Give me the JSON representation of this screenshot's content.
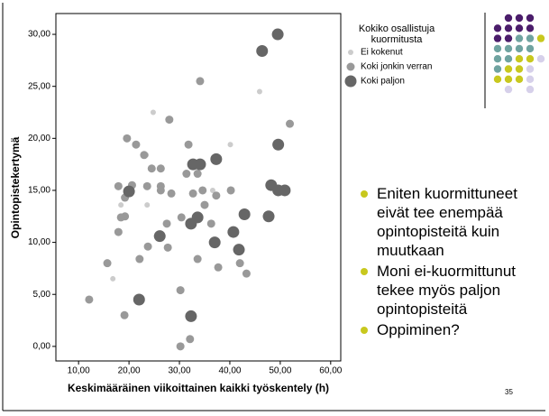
{
  "chart_data": {
    "type": "scatter",
    "x_label": "Keskimääräinen viikoittainen kaikki työskentely (h)",
    "y_label": "Opintopistekertymä",
    "legend_title": "Kokiko osallistuja kuormitusta",
    "xlim": [
      5.5,
      62
    ],
    "ylim": [
      -1.4,
      32
    ],
    "xticks": [
      {
        "value": 10,
        "label": "10,00"
      },
      {
        "value": 20,
        "label": "20,00"
      },
      {
        "value": 30,
        "label": "30,00"
      },
      {
        "value": 40,
        "label": "40,00"
      },
      {
        "value": 50,
        "label": "50,00"
      },
      {
        "value": 60,
        "label": "60,00"
      }
    ],
    "yticks": [
      {
        "value": 0,
        "label": "0,00"
      },
      {
        "value": 5,
        "label": "5,00"
      },
      {
        "value": 10,
        "label": "10,00"
      },
      {
        "value": 15,
        "label": "15,00"
      },
      {
        "value": 20,
        "label": "20,00"
      },
      {
        "value": 25,
        "label": "25,00"
      },
      {
        "value": 30,
        "label": "30,00"
      }
    ],
    "series": [
      {
        "name": "Ei kokenut",
        "color": "#cccccc",
        "x": [
          24.8,
          45.9,
          23.4,
          40.1,
          18.4,
          23.6,
          36.6,
          16.8
        ],
        "values": [
          22.5,
          24.5,
          18.4,
          19.4,
          13.6,
          13.6,
          15.0,
          6.5
        ]
      },
      {
        "name": "Koki jonkin verran",
        "color": "#999999",
        "x": [
          34.1,
          28.0,
          19.6,
          21.4,
          51.9,
          23.0,
          31.8,
          17.9,
          20.6,
          19.2,
          24.5,
          26.3,
          23.6,
          26.3,
          26.3,
          31.4,
          33.6,
          28.4,
          40.2,
          37.3,
          34.6,
          32.7,
          19.2,
          17.9,
          18.4,
          30.4,
          27.5,
          35.0,
          36.3,
          23.75,
          27.7,
          37.7,
          42.0,
          43.3,
          33.6,
          22.1,
          15.7,
          12.1,
          19.1,
          30.2,
          32.1,
          30.2
        ],
        "values": [
          25.5,
          21.8,
          20.0,
          19.4,
          21.4,
          18.4,
          19.4,
          15.4,
          15.5,
          14.3,
          17.1,
          17.1,
          15.4,
          15.4,
          15.0,
          16.6,
          16.6,
          14.7,
          15.0,
          14.5,
          15.0,
          14.7,
          12.5,
          11.0,
          12.4,
          12.4,
          11.8,
          13.6,
          11.8,
          9.6,
          9.5,
          7.6,
          8.0,
          7.0,
          8.4,
          8.4,
          8.0,
          4.5,
          3.0,
          5.4,
          0.7,
          0.0
        ]
      },
      {
        "name": "Koki paljon",
        "color": "#666666",
        "x": [
          49.5,
          46.4,
          32.7,
          34.1,
          37.3,
          20.0,
          48.2,
          49.6,
          50.9,
          49.6,
          33.6,
          32.3,
          42.9,
          26.1,
          37.0,
          40.7,
          47.7,
          41.8,
          22.0,
          32.3
        ],
        "values": [
          30.0,
          28.4,
          17.5,
          17.5,
          18.0,
          14.9,
          15.5,
          15.0,
          15.0,
          19.4,
          12.4,
          11.8,
          12.7,
          10.6,
          10.0,
          11.0,
          12.5,
          9.3,
          4.5,
          2.9
        ]
      }
    ]
  },
  "slide": {
    "bullets": [
      "Eniten kuormittuneet eivät tee enempää opintopisteitä kuin muutkaan",
      "Moni ei-kuormittunut tekee myös paljon opintopisteitä",
      "Oppiminen?"
    ],
    "page_number": "35"
  }
}
